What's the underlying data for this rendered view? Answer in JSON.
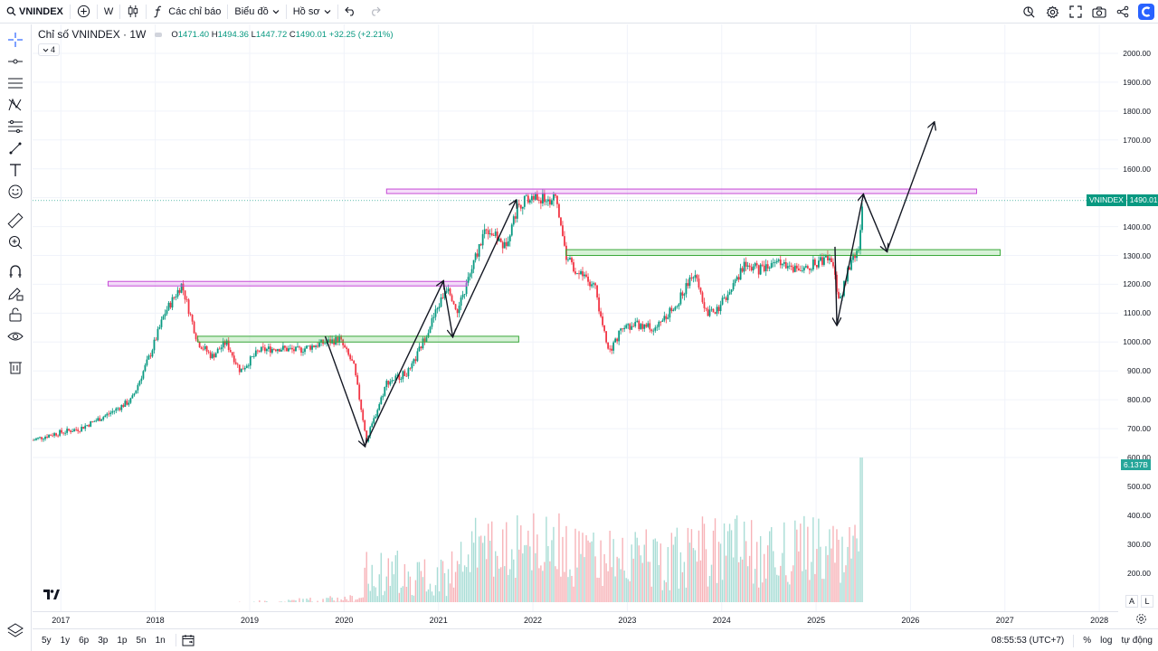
{
  "toolbar": {
    "symbol": "VNINDEX",
    "interval": "W",
    "indicators_label": "Các chỉ báo",
    "chart_label": "Biểu đồ",
    "profile_label": "Hồ sơ"
  },
  "legend": {
    "title": "Chỉ số VNINDEX · 1W",
    "open_label": "O",
    "open": "1471.40",
    "high_label": "H",
    "high": "1494.36",
    "low_label": "L",
    "low": "1447.72",
    "close_label": "C",
    "close": "1490.01",
    "change": "+32.25 (+2.21%)",
    "hidden_count": "4"
  },
  "price_scale": {
    "labels": [
      "2000.00",
      "1900.00",
      "1800.00",
      "1700.00",
      "1600.00",
      "1500.00",
      "1400.00",
      "1300.00",
      "1200.00",
      "1100.00",
      "1000.00",
      "900.00",
      "800.00",
      "700.00",
      "600.00",
      "500.00",
      "400.00",
      "300.00",
      "200.00"
    ],
    "last_symbol": "VNINDEX",
    "last_price": "1490.01",
    "volume_tag": "6.137B"
  },
  "time_axis": {
    "labels": [
      "2017",
      "2018",
      "2019",
      "2020",
      "2021",
      "2022",
      "2023",
      "2024",
      "2025",
      "2026",
      "2027",
      "2028"
    ]
  },
  "scale_toggles": {
    "auto": "A",
    "log_button": "L"
  },
  "bottom": {
    "ranges": [
      "5y",
      "1y",
      "6p",
      "3p",
      "1p",
      "5n",
      "1n"
    ],
    "clock": "08:55:53 (UTC+7)",
    "percent": "%",
    "log": "log",
    "auto": "tự động"
  },
  "colors": {
    "up": "#089981",
    "down": "#f23645",
    "vol_up": "#a9ddd6",
    "vol_down": "#f7b3b8",
    "resistance_zone": "#c64bd6",
    "support_zone": "#3aa83a"
  },
  "chart_data": {
    "type": "candlestick",
    "symbol": "VNINDEX",
    "timeframe": "1W",
    "y_range": [
      600,
      2000
    ],
    "x_range": [
      2016.7,
      2028.2
    ],
    "price_path": [
      [
        2016.7,
        660
      ],
      [
        2016.9,
        680
      ],
      [
        2017.2,
        700
      ],
      [
        2017.5,
        750
      ],
      [
        2017.75,
        800
      ],
      [
        2017.95,
        960
      ],
      [
        2018.1,
        1100
      ],
      [
        2018.28,
        1200
      ],
      [
        2018.45,
        1000
      ],
      [
        2018.6,
        950
      ],
      [
        2018.75,
        1000
      ],
      [
        2018.9,
        900
      ],
      [
        2019.1,
        970
      ],
      [
        2019.3,
        980
      ],
      [
        2019.5,
        970
      ],
      [
        2019.7,
        990
      ],
      [
        2019.95,
        1010
      ],
      [
        2020.1,
        920
      ],
      [
        2020.24,
        660
      ],
      [
        2020.45,
        860
      ],
      [
        2020.7,
        900
      ],
      [
        2020.9,
        1050
      ],
      [
        2021.1,
        1200
      ],
      [
        2021.2,
        1100
      ],
      [
        2021.35,
        1250
      ],
      [
        2021.5,
        1400
      ],
      [
        2021.7,
        1330
      ],
      [
        2021.85,
        1480
      ],
      [
        2022.0,
        1500
      ],
      [
        2022.25,
        1490
      ],
      [
        2022.35,
        1300
      ],
      [
        2022.5,
        1230
      ],
      [
        2022.65,
        1200
      ],
      [
        2022.8,
        960
      ],
      [
        2022.95,
        1050
      ],
      [
        2023.1,
        1060
      ],
      [
        2023.3,
        1050
      ],
      [
        2023.5,
        1120
      ],
      [
        2023.7,
        1240
      ],
      [
        2023.85,
        1100
      ],
      [
        2023.95,
        1110
      ],
      [
        2024.1,
        1180
      ],
      [
        2024.25,
        1270
      ],
      [
        2024.4,
        1250
      ],
      [
        2024.55,
        1280
      ],
      [
        2024.7,
        1260
      ],
      [
        2024.85,
        1260
      ],
      [
        2025.0,
        1270
      ],
      [
        2025.15,
        1300
      ],
      [
        2025.25,
        1140
      ],
      [
        2025.35,
        1260
      ],
      [
        2025.45,
        1330
      ],
      [
        2025.5,
        1490
      ]
    ],
    "volume_range": [
      0,
      600
    ],
    "zones": [
      {
        "kind": "resistance",
        "x": [
          2017.5,
          2021.3
        ],
        "y": [
          1197,
          1210
        ]
      },
      {
        "kind": "support",
        "x": [
          2018.45,
          2021.85
        ],
        "y": [
          1000,
          1020
        ]
      },
      {
        "kind": "resistance",
        "x": [
          2020.45,
          2026.7
        ],
        "y": [
          1515,
          1530
        ]
      },
      {
        "kind": "support",
        "x": [
          2022.35,
          2026.95
        ],
        "y": [
          1300,
          1320
        ]
      }
    ],
    "arrows": [
      [
        [
          2019.8,
          1020
        ],
        [
          2020.22,
          640
        ]
      ],
      [
        [
          2020.22,
          640
        ],
        [
          2021.05,
          1210
        ]
      ],
      [
        [
          2021.05,
          1210
        ],
        [
          2021.15,
          1020
        ]
      ],
      [
        [
          2021.15,
          1020
        ],
        [
          2021.82,
          1490
        ]
      ],
      [
        [
          2025.2,
          1330
        ],
        [
          2025.22,
          1060
        ]
      ],
      [
        [
          2025.22,
          1060
        ],
        [
          2025.5,
          1510
        ]
      ],
      [
        [
          2025.5,
          1510
        ],
        [
          2025.75,
          1315
        ]
      ],
      [
        [
          2025.75,
          1315
        ],
        [
          2026.25,
          1760
        ]
      ]
    ],
    "last_price": 1490.01
  }
}
